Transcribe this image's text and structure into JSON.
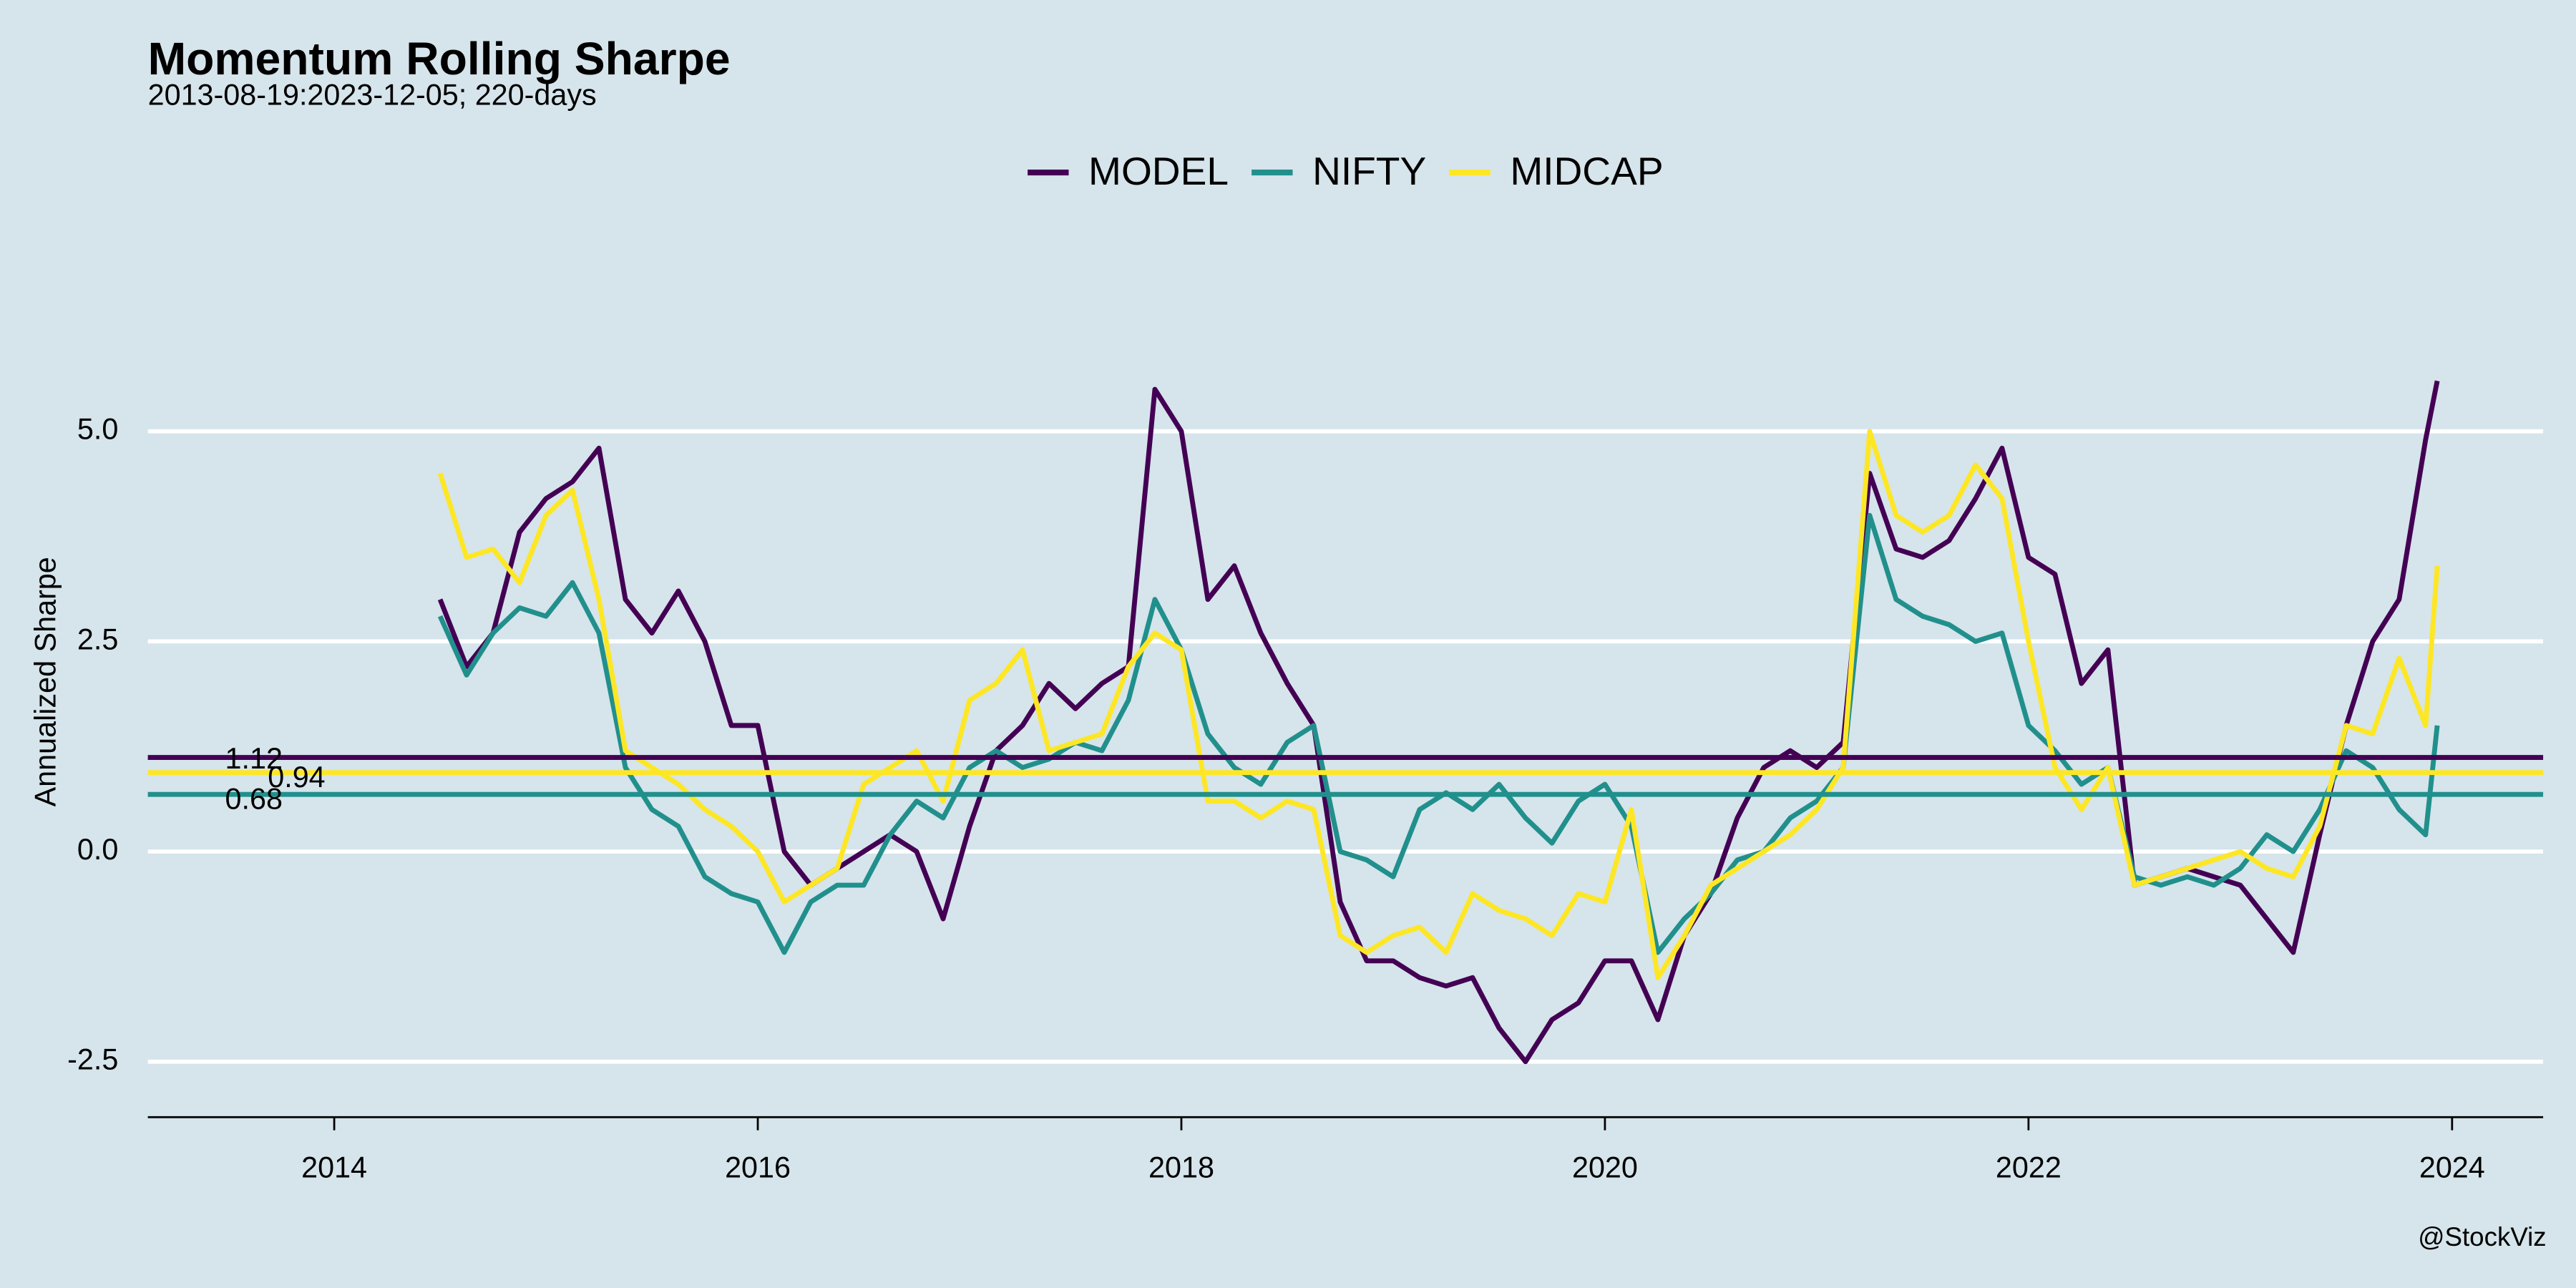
{
  "chart_data": {
    "type": "line",
    "title": "Momentum Rolling Sharpe",
    "subtitle": "2013-08-19:2023-12-05; 220-days",
    "ylabel": "Annualized Sharpe",
    "caption": "@StockViz",
    "legend": "top",
    "grid": true,
    "xlim": [
      2013.12,
      2024.43
    ],
    "xticks": [
      2014,
      2016,
      2018,
      2020,
      2022,
      2024
    ],
    "ylim": [
      -3.16,
      7.2
    ],
    "yticks": [
      {
        "value": -2.5,
        "label": "-2.5"
      },
      {
        "value": 0,
        "label": "0.0"
      },
      {
        "value": 2.5,
        "label": "2.5"
      },
      {
        "value": 5,
        "label": "5.0"
      }
    ],
    "x": [
      2014.5,
      2014.625,
      2014.75,
      2014.875,
      2015.0,
      2015.125,
      2015.25,
      2015.375,
      2015.5,
      2015.625,
      2015.75,
      2015.875,
      2016.0,
      2016.125,
      2016.25,
      2016.375,
      2016.5,
      2016.625,
      2016.75,
      2016.875,
      2017.0,
      2017.125,
      2017.25,
      2017.375,
      2017.5,
      2017.625,
      2017.75,
      2017.875,
      2018.0,
      2018.125,
      2018.25,
      2018.375,
      2018.5,
      2018.625,
      2018.75,
      2018.875,
      2019.0,
      2019.125,
      2019.25,
      2019.375,
      2019.5,
      2019.625,
      2019.75,
      2019.875,
      2020.0,
      2020.125,
      2020.25,
      2020.375,
      2020.5,
      2020.625,
      2020.75,
      2020.875,
      2021.0,
      2021.125,
      2021.25,
      2021.375,
      2021.5,
      2021.625,
      2021.75,
      2021.875,
      2022.0,
      2022.125,
      2022.25,
      2022.375,
      2022.5,
      2022.625,
      2022.75,
      2022.875,
      2023.0,
      2023.125,
      2023.25,
      2023.375,
      2023.5,
      2023.625,
      2023.75,
      2023.875,
      2023.93
    ],
    "series": [
      {
        "name": "MODEL",
        "color": "#440154",
        "mean": 1.12,
        "values": [
          3.0,
          2.2,
          2.6,
          3.8,
          4.2,
          4.4,
          4.8,
          3.0,
          2.6,
          3.1,
          2.5,
          1.5,
          1.5,
          0.0,
          -0.4,
          -0.2,
          0.0,
          0.2,
          0.0,
          -0.8,
          0.3,
          1.2,
          1.5,
          2.0,
          1.7,
          2.0,
          2.2,
          5.5,
          5.0,
          3.0,
          3.4,
          2.6,
          2.0,
          1.5,
          -0.6,
          -1.3,
          -1.3,
          -1.5,
          -1.6,
          -1.5,
          -2.1,
          -2.5,
          -2.0,
          -1.8,
          -1.3,
          -1.3,
          -2.0,
          -1.0,
          -0.5,
          0.4,
          1.0,
          1.2,
          1.0,
          1.3,
          4.5,
          3.6,
          3.5,
          3.7,
          4.2,
          4.8,
          3.5,
          3.3,
          2.0,
          2.4,
          -0.4,
          -0.3,
          -0.2,
          -0.3,
          -0.4,
          -0.8,
          -1.2,
          0.2,
          1.5,
          2.5,
          3.0,
          4.9,
          5.6
        ]
      },
      {
        "name": "NIFTY",
        "color": "#21908c",
        "mean": 0.68,
        "values": [
          2.8,
          2.1,
          2.6,
          2.9,
          2.8,
          3.2,
          2.6,
          1.0,
          0.5,
          0.3,
          -0.3,
          -0.5,
          -0.6,
          -1.2,
          -0.6,
          -0.4,
          -0.4,
          0.2,
          0.6,
          0.4,
          1.0,
          1.2,
          1.0,
          1.1,
          1.3,
          1.2,
          1.8,
          3.0,
          2.4,
          1.4,
          1.0,
          0.8,
          1.3,
          1.5,
          0.0,
          -0.1,
          -0.3,
          0.5,
          0.7,
          0.5,
          0.8,
          0.4,
          0.1,
          0.6,
          0.8,
          0.3,
          -1.2,
          -0.8,
          -0.5,
          -0.1,
          0.0,
          0.4,
          0.6,
          1.0,
          4.0,
          3.0,
          2.8,
          2.7,
          2.5,
          2.6,
          1.5,
          1.2,
          0.8,
          1.0,
          -0.3,
          -0.4,
          -0.3,
          -0.4,
          -0.2,
          0.2,
          0.0,
          0.5,
          1.2,
          1.0,
          0.5,
          0.2,
          1.5
        ]
      },
      {
        "name": "MIDCAP",
        "color": "#fde725",
        "mean": 0.94,
        "values": [
          4.5,
          3.5,
          3.6,
          3.2,
          4.0,
          4.3,
          3.0,
          1.2,
          1.0,
          0.8,
          0.5,
          0.3,
          0.0,
          -0.6,
          -0.4,
          -0.2,
          0.8,
          1.0,
          1.2,
          0.6,
          1.8,
          2.0,
          2.4,
          1.2,
          1.3,
          1.4,
          2.2,
          2.6,
          2.4,
          0.6,
          0.6,
          0.4,
          0.6,
          0.5,
          -1.0,
          -1.2,
          -1.0,
          -0.9,
          -1.2,
          -0.5,
          -0.7,
          -0.8,
          -1.0,
          -0.5,
          -0.6,
          0.5,
          -1.5,
          -1.0,
          -0.4,
          -0.2,
          0.0,
          0.2,
          0.5,
          1.0,
          5.0,
          4.0,
          3.8,
          4.0,
          4.6,
          4.2,
          2.5,
          1.0,
          0.5,
          1.0,
          -0.4,
          -0.3,
          -0.2,
          -0.1,
          0.0,
          -0.2,
          -0.3,
          0.3,
          1.5,
          1.4,
          2.3,
          1.5,
          3.4
        ]
      }
    ]
  }
}
